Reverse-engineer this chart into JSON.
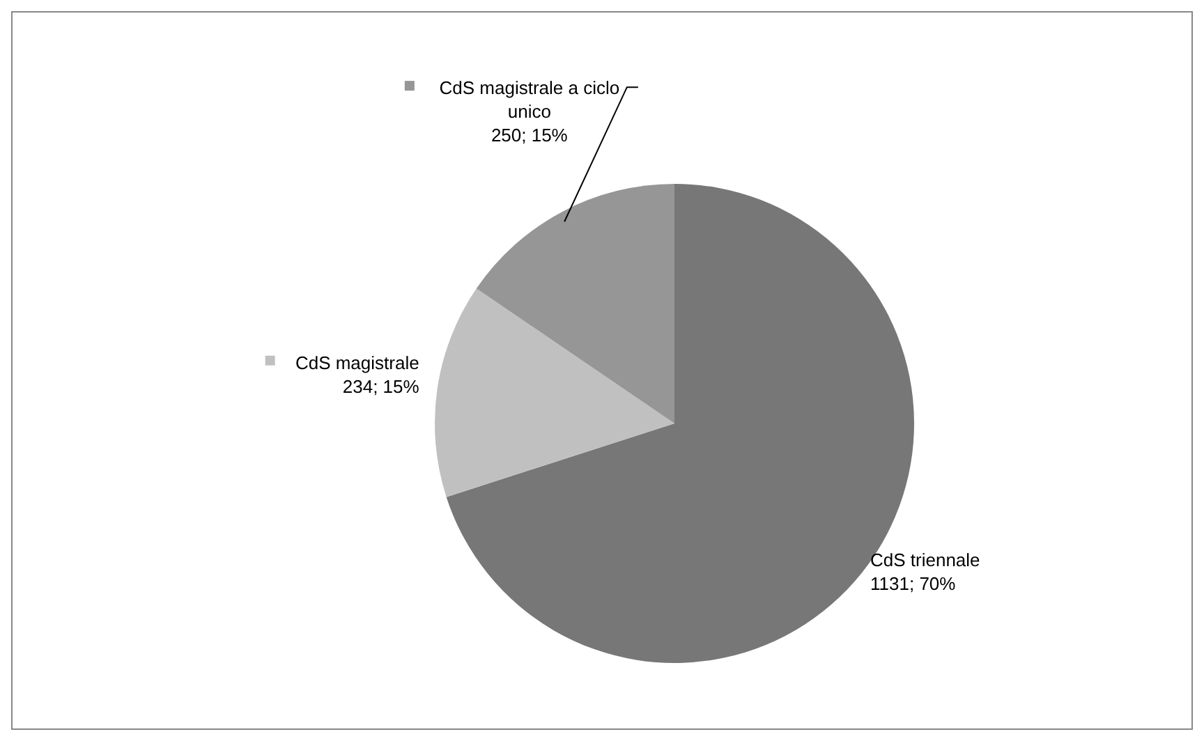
{
  "chart_data": {
    "type": "pie",
    "categories": [
      "CdS triennale",
      "CdS magistrale",
      "CdS magistrale a ciclo unico"
    ],
    "values": [
      1131,
      234,
      250
    ],
    "value_labels": [
      "1131; 70%",
      "234; 15%",
      "250; 15%"
    ],
    "colors": [
      "#777777",
      "#c0c0c0",
      "#969696"
    ],
    "legend": "top left"
  }
}
